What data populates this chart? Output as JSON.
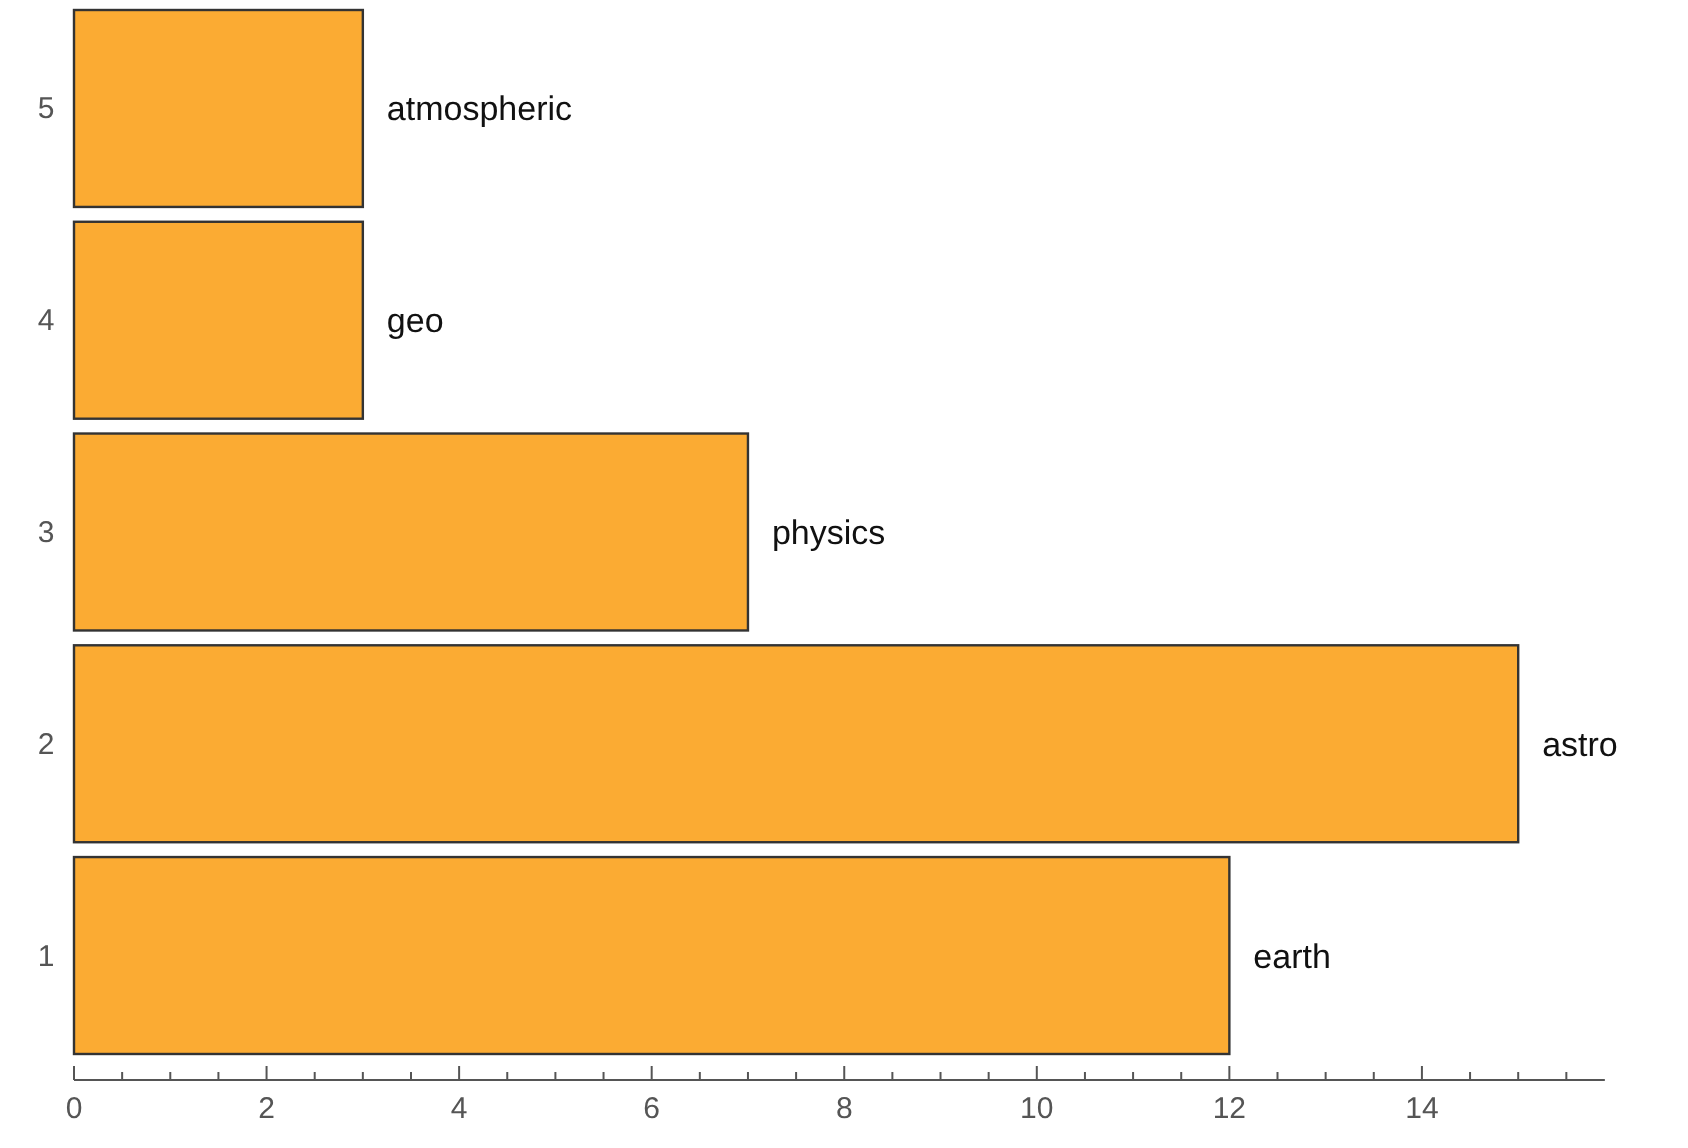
{
  "chart_data": {
    "type": "bar",
    "orientation": "horizontal",
    "categories": [
      "5",
      "4",
      "3",
      "2",
      "1"
    ],
    "values": [
      3,
      3,
      7,
      15,
      12
    ],
    "color": "#fbab33",
    "xlim": [
      0,
      15.9
    ],
    "xticks": [
      0,
      {
        "value": 0.5,
        "label": null
      },
      {
        "value": 1,
        "label": null
      },
      {
        "value": 1.5,
        "label": null
      },
      2,
      {
        "value": 2.5,
        "label": null
      },
      {
        "value": 3,
        "label": null
      },
      {
        "value": 3.5,
        "label": null
      },
      4,
      {
        "value": 4.5,
        "label": null
      },
      {
        "value": 5,
        "label": null
      },
      {
        "value": 5.5,
        "label": null
      },
      6,
      {
        "value": 6.5,
        "label": null
      },
      {
        "value": 7,
        "label": null
      },
      {
        "value": 7.5,
        "label": null
      },
      8,
      {
        "value": 8.5,
        "label": null
      },
      {
        "value": 9,
        "label": null
      },
      {
        "value": 9.5,
        "label": null
      },
      10,
      {
        "value": 10.5,
        "label": null
      },
      {
        "value": 11,
        "label": null
      },
      {
        "value": 11.5,
        "label": null
      },
      12,
      {
        "value": 12.5,
        "label": null
      },
      {
        "value": 13,
        "label": null
      },
      {
        "value": 13.5,
        "label": null
      },
      14,
      {
        "value": 14.5,
        "label": null
      },
      {
        "value": 15,
        "label": null
      },
      {
        "value": 15.5,
        "label": null
      }
    ],
    "annotations": [
      {
        "text": "atmospheric",
        "x": 3,
        "y": "5"
      },
      {
        "text": "geo",
        "x": 3,
        "y": "4"
      },
      {
        "text": "physics",
        "x": 7,
        "y": "3"
      },
      {
        "text": "astro",
        "x": 15,
        "y": "2"
      },
      {
        "text": "earth",
        "x": 12,
        "y": "1"
      }
    ],
    "grid": false
  }
}
